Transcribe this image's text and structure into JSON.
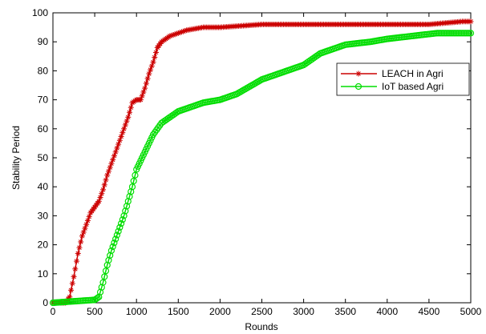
{
  "chart_data": {
    "type": "line",
    "title": "",
    "xlabel": "Rounds",
    "ylabel": "Stability Period",
    "xlim": [
      0,
      5000
    ],
    "ylim": [
      0,
      100
    ],
    "xticks": [
      0,
      500,
      1000,
      1500,
      2000,
      2500,
      3000,
      3500,
      4000,
      4500,
      5000
    ],
    "yticks": [
      0,
      10,
      20,
      30,
      40,
      50,
      60,
      70,
      80,
      90,
      100
    ],
    "grid": false,
    "legend_position": "right",
    "series": [
      {
        "name": "LEACH in Agri",
        "color": "#cc0000",
        "marker": "star",
        "x": [
          0,
          150,
          200,
          250,
          300,
          350,
          400,
          450,
          500,
          550,
          600,
          650,
          700,
          750,
          800,
          850,
          900,
          950,
          1000,
          1050,
          1100,
          1150,
          1200,
          1250,
          1300,
          1350,
          1400,
          1500,
          1600,
          1800,
          2000,
          2500,
          3000,
          3500,
          4000,
          4500,
          4900,
          5000
        ],
        "y": [
          0,
          0,
          2,
          9,
          17,
          23,
          27,
          31,
          33,
          35,
          39,
          44,
          48,
          52,
          56,
          60,
          64,
          69,
          70,
          70,
          74,
          79,
          83,
          88,
          90,
          91,
          92,
          93,
          94,
          95,
          95,
          96,
          96,
          96,
          96,
          96,
          97,
          97
        ]
      },
      {
        "name": "IoT based Agri",
        "color": "#00dd00",
        "marker": "circle",
        "x": [
          0,
          500,
          550,
          600,
          650,
          700,
          750,
          800,
          850,
          900,
          950,
          1000,
          1050,
          1100,
          1150,
          1200,
          1300,
          1400,
          1500,
          1600,
          1800,
          2000,
          2200,
          2500,
          2800,
          3000,
          3200,
          3500,
          3800,
          4000,
          4300,
          4600,
          5000
        ],
        "y": [
          0,
          1,
          2,
          7,
          13,
          18,
          22,
          26,
          30,
          35,
          40,
          46,
          49,
          52,
          55,
          58,
          62,
          64,
          66,
          67,
          69,
          70,
          72,
          77,
          80,
          82,
          86,
          89,
          90,
          91,
          92,
          93,
          93
        ]
      }
    ]
  }
}
